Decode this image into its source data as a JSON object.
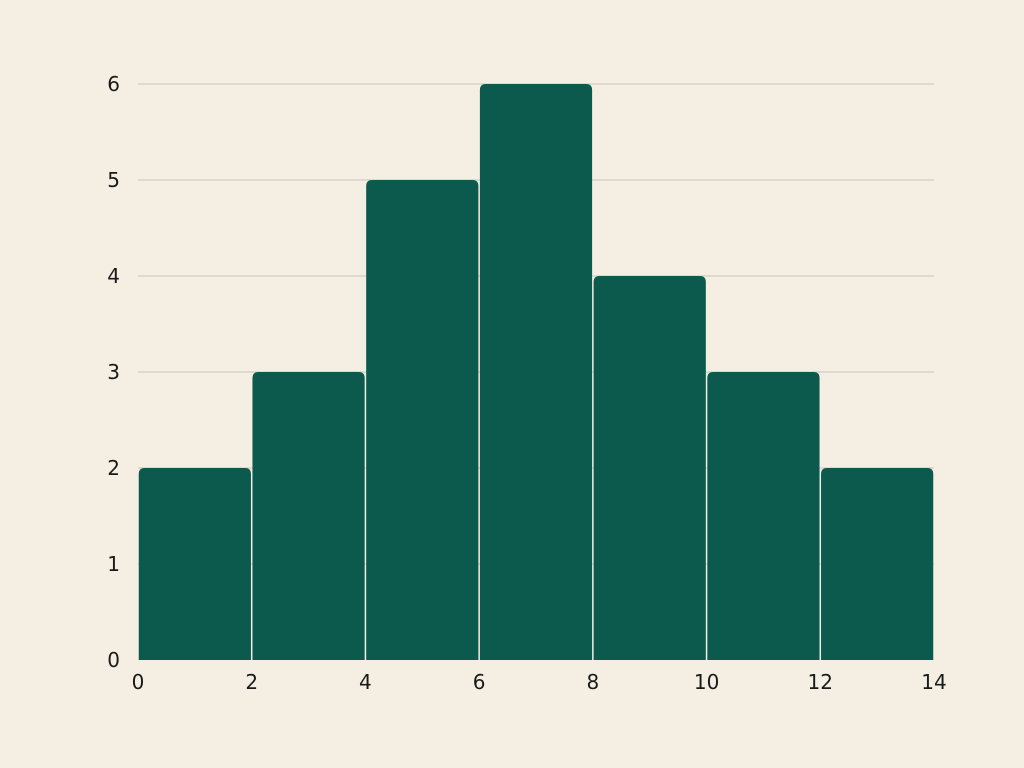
{
  "chart_data": {
    "type": "bar",
    "title": "",
    "xlabel": "",
    "ylabel": "",
    "bins": [
      {
        "x0": 0,
        "x1": 2,
        "count": 2
      },
      {
        "x0": 2,
        "x1": 4,
        "count": 3
      },
      {
        "x0": 4,
        "x1": 6,
        "count": 5
      },
      {
        "x0": 6,
        "x1": 8,
        "count": 6
      },
      {
        "x0": 8,
        "x1": 10,
        "count": 4
      },
      {
        "x0": 10,
        "x1": 12,
        "count": 3
      },
      {
        "x0": 12,
        "x1": 14,
        "count": 2
      }
    ],
    "xlim": [
      0,
      14
    ],
    "ylim": [
      0,
      6
    ],
    "x_ticks": [
      "0",
      "2",
      "4",
      "6",
      "8",
      "10",
      "12",
      "14"
    ],
    "y_ticks": [
      "0",
      "1",
      "2",
      "3",
      "4",
      "5",
      "6"
    ],
    "grid": "horizontal",
    "legend": "none"
  },
  "colors": {
    "background": "#f5eee3",
    "bar": "#0c5a4e",
    "bar_edge": "#ffffff",
    "grid": "#c9c3b8",
    "text": "#1a1a1a"
  }
}
